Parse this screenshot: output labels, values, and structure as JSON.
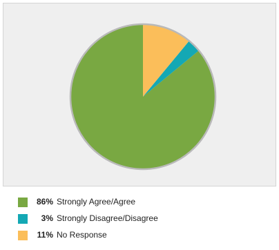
{
  "chart_data": {
    "type": "pie",
    "slices": [
      {
        "label": "Strongly Agree/Agree",
        "value": 86,
        "pct_label": "86%",
        "color": "#79a842"
      },
      {
        "label": "Strongly Disagree/Disagree",
        "value": 3,
        "pct_label": "3%",
        "color": "#14a8b4"
      },
      {
        "label": "No Response",
        "value": 11,
        "pct_label": "11%",
        "color": "#fbbe5a"
      }
    ],
    "start": "top, counter-clockwise",
    "legend_position": "bottom"
  },
  "legend": {
    "items": [
      {
        "pct": "86%",
        "label": "Strongly Agree/Agree"
      },
      {
        "pct": "3%",
        "label": "Strongly Disagree/Disagree"
      },
      {
        "pct": "11%",
        "label": "No Response"
      }
    ]
  }
}
